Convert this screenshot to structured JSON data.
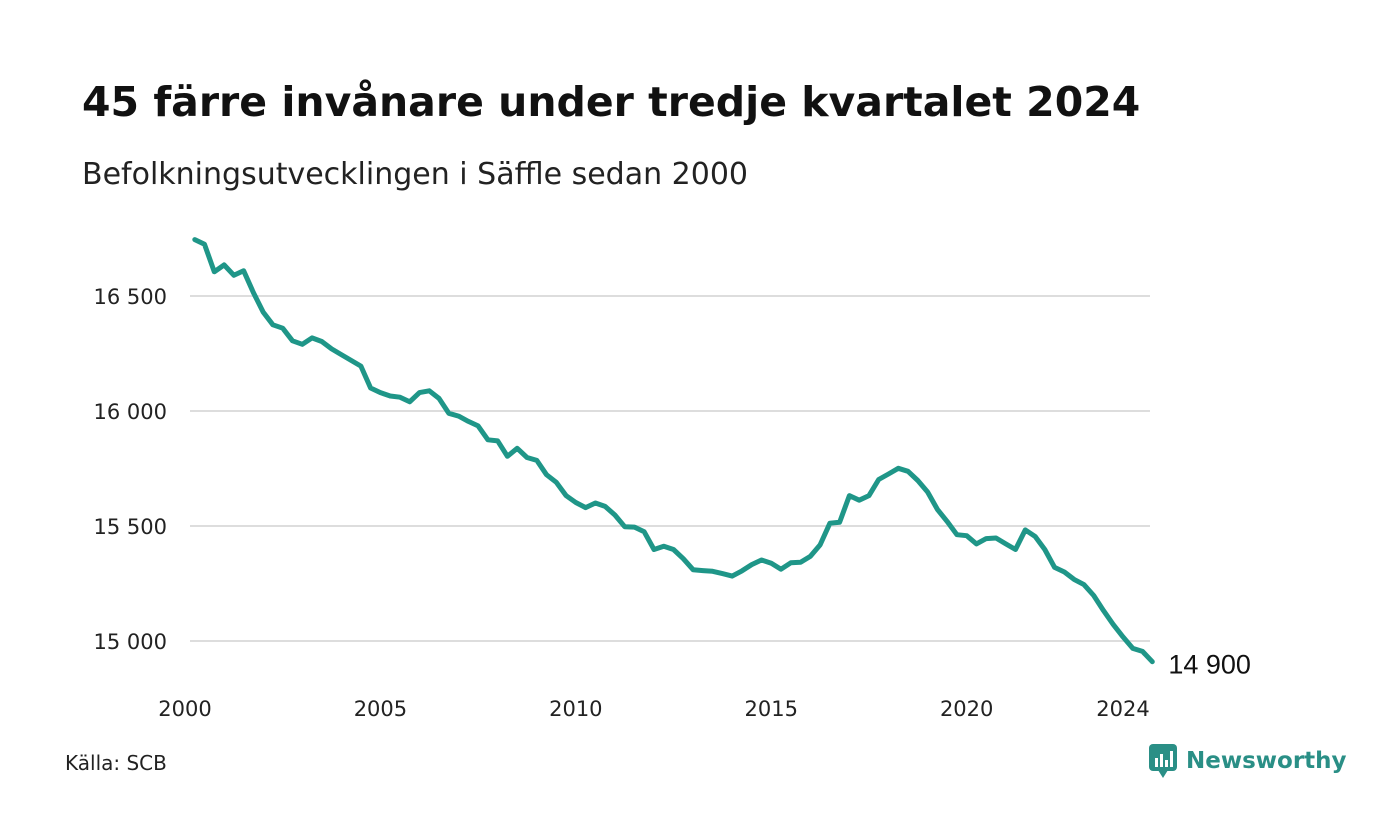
{
  "title": "45 färre invånare under tredje kvartalet 2024",
  "subtitle": "Befolkningsutvecklingen i Säffle sedan 2000",
  "source": "Källa: SCB",
  "brand": {
    "name": "Newsworthy",
    "icon": "newsworthy-logo-icon"
  },
  "colors": {
    "line": "#1f9688",
    "grid": "#dddddd",
    "brand": "#2a8f86"
  },
  "chart_data": {
    "type": "line",
    "title": "45 färre invånare under tredje kvartalet 2024",
    "subtitle": "Befolkningsutvecklingen i Säffle sedan 2000",
    "xlabel": "",
    "ylabel": "",
    "x_ticks": [
      2000,
      2005,
      2010,
      2015,
      2020,
      2024
    ],
    "x_tick_labels": [
      "2000",
      "2005",
      "2010",
      "2015",
      "2020",
      "2024"
    ],
    "y_ticks": [
      15000,
      15500,
      16000,
      16500
    ],
    "y_tick_labels": [
      "15 000",
      "15 500",
      "16 000",
      "16 500"
    ],
    "xlim": [
      2000,
      2024.75
    ],
    "ylim": [
      14850,
      16780
    ],
    "grid": "horizontal",
    "end_label": "14 900",
    "series": [
      {
        "x": [
          2000.25,
          2000.5,
          2000.75,
          2001,
          2001.25,
          2001.5,
          2001.75,
          2002,
          2002.25,
          2002.5,
          2002.75,
          2003,
          2003.25,
          2003.5,
          2003.75,
          2004,
          2004.25,
          2004.5,
          2004.75,
          2005,
          2005.25,
          2005.5,
          2005.75,
          2006,
          2006.25,
          2006.5,
          2006.75,
          2007,
          2007.25,
          2007.5,
          2007.75,
          2008,
          2008.25,
          2008.5,
          2008.75,
          2009,
          2009.25,
          2009.5,
          2009.75,
          2010,
          2010.25,
          2010.5,
          2010.75,
          2011,
          2011.25,
          2011.5,
          2011.75,
          2012,
          2012.25,
          2012.5,
          2012.75,
          2013,
          2013.25,
          2013.5,
          2013.75,
          2014,
          2014.25,
          2014.5,
          2014.75,
          2015,
          2015.25,
          2015.5,
          2015.75,
          2016,
          2016.25,
          2016.5,
          2016.75,
          2017,
          2017.25,
          2017.5,
          2017.75,
          2018,
          2018.25,
          2018.5,
          2018.75,
          2019,
          2019.25,
          2019.5,
          2019.75,
          2020,
          2020.25,
          2020.5,
          2020.75,
          2021,
          2021.25,
          2021.5,
          2021.75,
          2022,
          2022.25,
          2022.5,
          2022.75,
          2023,
          2023.25,
          2023.5,
          2023.75,
          2024,
          2024.25,
          2024.5,
          2024.75
        ],
        "values": [
          16745,
          16725,
          16605,
          16635,
          16590,
          16610,
          16515,
          16430,
          16375,
          16360,
          16305,
          16290,
          16318,
          16302,
          16270,
          16245,
          16220,
          16195,
          16100,
          16080,
          16065,
          16060,
          16040,
          16080,
          16088,
          16055,
          15990,
          15978,
          15955,
          15935,
          15875,
          15870,
          15803,
          15838,
          15798,
          15785,
          15723,
          15690,
          15632,
          15602,
          15580,
          15600,
          15585,
          15548,
          15497,
          15495,
          15475,
          15398,
          15412,
          15398,
          15358,
          15310,
          15306,
          15303,
          15293,
          15282,
          15305,
          15332,
          15352,
          15338,
          15312,
          15340,
          15342,
          15368,
          15418,
          15512,
          15516,
          15632,
          15612,
          15632,
          15702,
          15726,
          15751,
          15738,
          15698,
          15648,
          15572,
          15520,
          15462,
          15458,
          15422,
          15445,
          15448,
          15422,
          15398,
          15483,
          15455,
          15398,
          15320,
          15300,
          15268,
          15245,
          15198,
          15132,
          15072,
          15018,
          14968,
          14955,
          14910
        ]
      }
    ]
  }
}
